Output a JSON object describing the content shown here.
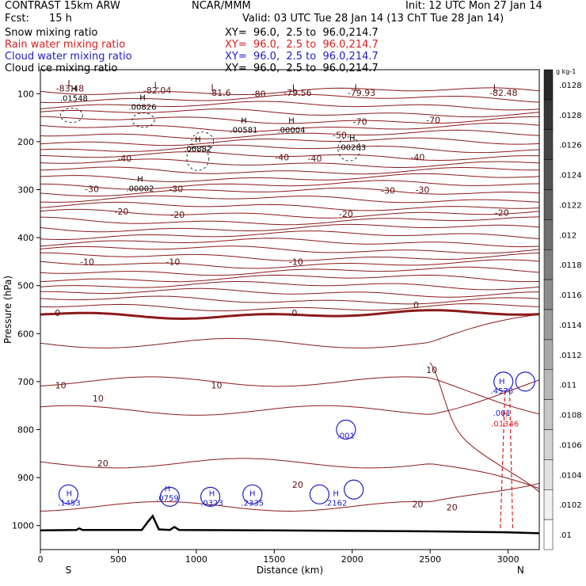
{
  "header": {
    "title": "CONTRAST 15km ARW",
    "center": "NCAR/MMM",
    "init": "Init: 12 UTC Mon 27 Jan 14",
    "fcst_label": "Fcst:",
    "fcst_value": "15 h",
    "valid": "Valid: 03 UTC Tue 28 Jan 14 (13 ChT Tue 28 Jan 14)"
  },
  "fields": [
    {
      "name": "Snow mixing ratio",
      "xy": "XY=  96.0,  2.5 to  96.0,214.7",
      "color": "#000000"
    },
    {
      "name": "Rain water mixing ratio",
      "xy": "XY=  96.0,  2.5 to  96.0,214.7",
      "color": "#d42020"
    },
    {
      "name": "Cloud water mixing ratio",
      "xy": "XY=  96.0,  2.5 to  96.0,214.7",
      "color": "#2020c8"
    },
    {
      "name": "Cloud ice mixing ratio",
      "xy": "XY=  96.0,  2.5 to  96.0,214.7",
      "color": "#000000"
    }
  ],
  "chart_data": {
    "type": "contour",
    "xlabel": "Distance (km)",
    "ylabel": "Pressure (hPa)",
    "xlim": [
      0,
      3200
    ],
    "ylim": [
      1050,
      50
    ],
    "x_ticks": [
      0,
      500,
      1000,
      1500,
      2000,
      2500,
      3000
    ],
    "y_ticks": [
      100,
      200,
      300,
      400,
      500,
      600,
      700,
      800,
      900,
      1000
    ],
    "endpoints": {
      "left": "S",
      "right": "N"
    },
    "colorbar": {
      "unit": "g kg-1",
      "ticks": [
        ".0128",
        ".0128",
        ".0126",
        ".0124",
        ".0122",
        ".012",
        ".0118",
        ".0116",
        ".0114",
        ".0112",
        ".011",
        ".0108",
        ".0106",
        ".0104",
        ".0102",
        ".01"
      ]
    },
    "temperature_contours": {
      "color": "#8b1a1a",
      "interval": 10,
      "labels": [
        {
          "text": "-80",
          "x": 1400,
          "p": 100
        },
        {
          "text": "-70",
          "x": 2050,
          "p": 158
        },
        {
          "text": "-70",
          "x": 2520,
          "p": 155
        },
        {
          "text": "-50",
          "x": 1920,
          "p": 186
        },
        {
          "text": "-40",
          "x": 540,
          "p": 235
        },
        {
          "text": "-40",
          "x": 1550,
          "p": 232
        },
        {
          "text": "-40",
          "x": 1760,
          "p": 235
        },
        {
          "text": "-40",
          "x": 2420,
          "p": 232
        },
        {
          "text": "-30",
          "x": 330,
          "p": 298
        },
        {
          "text": "-30",
          "x": 870,
          "p": 298
        },
        {
          "text": "-30",
          "x": 2230,
          "p": 302
        },
        {
          "text": "-30",
          "x": 2450,
          "p": 300
        },
        {
          "text": "-20",
          "x": 520,
          "p": 345
        },
        {
          "text": "-20",
          "x": 880,
          "p": 352
        },
        {
          "text": "-20",
          "x": 1960,
          "p": 350
        },
        {
          "text": "-20",
          "x": 2960,
          "p": 348
        },
        {
          "text": "-10",
          "x": 300,
          "p": 450
        },
        {
          "text": "-10",
          "x": 850,
          "p": 450
        },
        {
          "text": "-10",
          "x": 1640,
          "p": 450
        },
        {
          "text": "0",
          "x": 110,
          "p": 557
        },
        {
          "text": "0",
          "x": 1630,
          "p": 557
        },
        {
          "text": "0",
          "x": 2410,
          "p": 540
        },
        {
          "text": "10",
          "x": 2510,
          "p": 675
        },
        {
          "text": "10",
          "x": 130,
          "p": 708
        },
        {
          "text": "10",
          "x": 370,
          "p": 735
        },
        {
          "text": "10",
          "x": 1130,
          "p": 708
        },
        {
          "text": "20",
          "x": 400,
          "p": 870
        },
        {
          "text": "20",
          "x": 1650,
          "p": 915
        },
        {
          "text": "20",
          "x": 2420,
          "p": 955
        },
        {
          "text": "20",
          "x": 2640,
          "p": 962
        }
      ],
      "extrema": [
        {
          "text": "L",
          "x": 190,
          "p": 78
        },
        {
          "text": "-83.48",
          "x": 190,
          "p": 89
        },
        {
          "text": "L",
          "x": 745,
          "p": 82
        },
        {
          "text": "-82.04",
          "x": 750,
          "p": 93
        },
        {
          "text": "L",
          "x": 1110,
          "p": 87
        },
        {
          "text": "-81.6",
          "x": 1150,
          "p": 98
        },
        {
          "text": "L",
          "x": 1630,
          "p": 87
        },
        {
          "text": "-79.56",
          "x": 1650,
          "p": 98
        },
        {
          "text": "L",
          "x": 2030,
          "p": 87
        },
        {
          "text": "-79.93",
          "x": 2060,
          "p": 98
        },
        {
          "text": "L",
          "x": 2920,
          "p": 87
        },
        {
          "text": "-82.48",
          "x": 2970,
          "p": 98
        }
      ]
    },
    "ice_maxima": [
      {
        "text": "H",
        "x": 215,
        "p": 102,
        "value": ".01548"
      },
      {
        "text": "H",
        "x": 655,
        "p": 120,
        "value": ".00826"
      },
      {
        "text": "H",
        "x": 1305,
        "p": 168,
        "value": ".00581"
      },
      {
        "text": "H",
        "x": 1610,
        "p": 168,
        "value": ".00004"
      },
      {
        "text": "H",
        "x": 1010,
        "p": 208,
        "value": ".00882"
      },
      {
        "text": "H",
        "x": 2000,
        "p": 204,
        "value": ".00283"
      },
      {
        "text": "H",
        "x": 640,
        "p": 290,
        "value": ".00002"
      }
    ],
    "cloud_water_maxima": [
      {
        "text": "H",
        "x": 185,
        "p": 945,
        "value": ".1453"
      },
      {
        "text": "H",
        "x": 815,
        "p": 935,
        "value": ".0759"
      },
      {
        "text": "H",
        "x": 1100,
        "p": 945,
        "value": ".0323"
      },
      {
        "text": "H",
        "x": 1360,
        "p": 945,
        "value": ".2335"
      },
      {
        "text": "H",
        "x": 1895,
        "p": 945,
        "value": ".2162"
      },
      {
        "text": "",
        "x": 1960,
        "p": 805,
        "value": ".001"
      },
      {
        "text": "H",
        "x": 2960,
        "p": 712,
        "value": ".4578"
      },
      {
        "text": "",
        "x": 2960,
        "p": 758,
        "value": ".001"
      }
    ],
    "rain_maxima": [
      {
        "text": "H",
        "x": 2980,
        "p": 780,
        "value": ".01346"
      }
    ],
    "surface": [
      [
        0,
        1010
      ],
      [
        230,
        1009
      ],
      [
        250,
        1006
      ],
      [
        270,
        1009
      ],
      [
        650,
        1009
      ],
      [
        690,
        992
      ],
      [
        720,
        980
      ],
      [
        760,
        1008
      ],
      [
        830,
        1009
      ],
      [
        860,
        1003
      ],
      [
        890,
        1009
      ],
      [
        1500,
        1010
      ],
      [
        2500,
        1012
      ],
      [
        3000,
        1014
      ],
      [
        3200,
        1016
      ]
    ]
  }
}
